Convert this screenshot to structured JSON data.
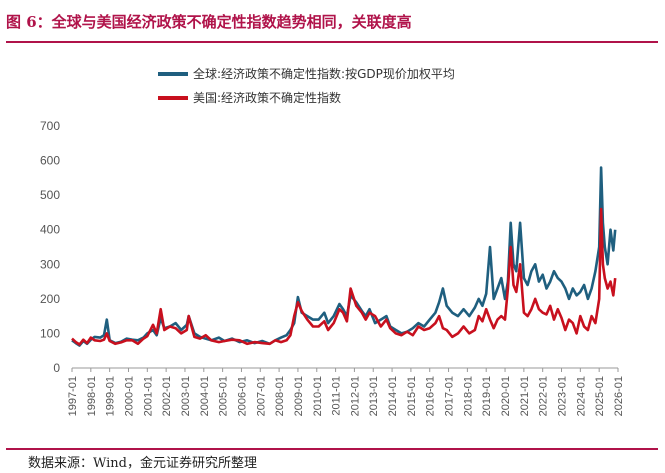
{
  "title": "图 6：全球与美国经济政策不确定性指数趋势相同，关联度高",
  "source": "数据来源：Wind，金元证券研究所整理",
  "colors": {
    "accent": "#b0134a",
    "global": "#1f5f7f",
    "us": "#c8101e",
    "axis": "#999999"
  },
  "chart_data": {
    "type": "line",
    "ylim": [
      0,
      700
    ],
    "yticks": [
      0,
      100,
      200,
      300,
      400,
      500,
      600,
      700
    ],
    "xticks": [
      "1997-01",
      "1998-01",
      "1999-01",
      "2000-01",
      "2001-01",
      "2002-01",
      "2003-01",
      "2004-01",
      "2005-01",
      "2006-01",
      "2007-01",
      "2008-01",
      "2009-01",
      "2010-01",
      "2011-01",
      "2012-01",
      "2013-01",
      "2014-01",
      "2015-01",
      "2016-01",
      "2017-01",
      "2018-01",
      "2019-01",
      "2020-01",
      "2021-01",
      "2022-01",
      "2023-01",
      "2024-01",
      "2025-01",
      "2026-01"
    ],
    "xlim": [
      1997.0,
      2026.0
    ],
    "series": [
      {
        "name": "全球:经济政策不确定性指数:按GDP现价加权平均",
        "color": "#1f5f7f",
        "x": [
          1997.0,
          1997.2,
          1997.4,
          1997.6,
          1997.8,
          1998.0,
          1998.2,
          1998.5,
          1998.7,
          1998.85,
          1999.0,
          1999.3,
          1999.6,
          1999.9,
          2000.2,
          2000.5,
          2000.8,
          2001.0,
          2001.3,
          2001.5,
          2001.71,
          2001.9,
          2002.2,
          2002.5,
          2002.8,
          2003.1,
          2003.2,
          2003.5,
          2003.8,
          2004.1,
          2004.4,
          2004.8,
          2005.1,
          2005.5,
          2005.9,
          2006.3,
          2006.7,
          2007.1,
          2007.5,
          2007.8,
          2008.1,
          2008.4,
          2008.6,
          2008.8,
          2009.0,
          2009.2,
          2009.5,
          2009.8,
          2010.1,
          2010.4,
          2010.6,
          2010.9,
          2011.2,
          2011.4,
          2011.6,
          2011.8,
          2012.1,
          2012.4,
          2012.6,
          2012.8,
          2013.1,
          2013.4,
          2013.7,
          2013.9,
          2014.2,
          2014.5,
          2014.8,
          2015.1,
          2015.4,
          2015.7,
          2016.0,
          2016.3,
          2016.5,
          2016.7,
          2016.9,
          2017.2,
          2017.5,
          2017.8,
          2018.1,
          2018.4,
          2018.6,
          2018.8,
          2019.0,
          2019.2,
          2019.4,
          2019.6,
          2019.8,
          2020.0,
          2020.15,
          2020.3,
          2020.45,
          2020.6,
          2020.8,
          2021.0,
          2021.2,
          2021.4,
          2021.6,
          2021.8,
          2022.0,
          2022.2,
          2022.4,
          2022.6,
          2022.8,
          2023.0,
          2023.2,
          2023.4,
          2023.6,
          2023.8,
          2024.0,
          2024.2,
          2024.4,
          2024.6,
          2024.8,
          2025.0,
          2025.1,
          2025.2,
          2025.3,
          2025.45,
          2025.6,
          2025.75,
          2025.85
        ],
        "values": [
          80,
          72,
          65,
          78,
          70,
          82,
          90,
          88,
          95,
          140,
          80,
          72,
          76,
          85,
          82,
          80,
          88,
          100,
          110,
          95,
          145,
          115,
          120,
          130,
          110,
          125,
          150,
          100,
          90,
          85,
          80,
          88,
          78,
          85,
          75,
          80,
          72,
          78,
          70,
          80,
          88,
          95,
          110,
          130,
          205,
          160,
          150,
          140,
          140,
          160,
          130,
          150,
          185,
          170,
          150,
          210,
          190,
          165,
          150,
          170,
          130,
          140,
          150,
          120,
          110,
          100,
          105,
          115,
          130,
          120,
          140,
          160,
          190,
          230,
          180,
          160,
          150,
          170,
          150,
          175,
          200,
          180,
          215,
          350,
          200,
          230,
          260,
          200,
          250,
          420,
          300,
          280,
          420,
          260,
          240,
          280,
          300,
          250,
          270,
          230,
          250,
          280,
          260,
          250,
          230,
          200,
          230,
          210,
          220,
          240,
          200,
          230,
          280,
          350,
          580,
          420,
          350,
          300,
          400,
          340,
          400
        ]
      },
      {
        "name": "美国:经济政策不确定性指数",
        "color": "#c8101e",
        "x": [
          1997.0,
          1997.2,
          1997.4,
          1997.6,
          1997.8,
          1998.0,
          1998.2,
          1998.5,
          1998.7,
          1998.85,
          1999.0,
          1999.3,
          1999.6,
          1999.9,
          2000.2,
          2000.5,
          2000.8,
          2001.0,
          2001.3,
          2001.5,
          2001.71,
          2001.9,
          2002.2,
          2002.5,
          2002.8,
          2003.1,
          2003.2,
          2003.5,
          2003.8,
          2004.1,
          2004.4,
          2004.8,
          2005.1,
          2005.5,
          2005.9,
          2006.3,
          2006.7,
          2007.1,
          2007.5,
          2007.8,
          2008.1,
          2008.4,
          2008.6,
          2008.8,
          2009.0,
          2009.2,
          2009.5,
          2009.8,
          2010.1,
          2010.4,
          2010.6,
          2010.9,
          2011.2,
          2011.4,
          2011.6,
          2011.8,
          2012.1,
          2012.4,
          2012.6,
          2012.8,
          2013.1,
          2013.4,
          2013.7,
          2013.9,
          2014.2,
          2014.5,
          2014.8,
          2015.1,
          2015.4,
          2015.7,
          2016.0,
          2016.3,
          2016.5,
          2016.7,
          2016.9,
          2017.2,
          2017.5,
          2017.8,
          2018.1,
          2018.4,
          2018.6,
          2018.8,
          2019.0,
          2019.2,
          2019.4,
          2019.6,
          2019.8,
          2020.0,
          2020.15,
          2020.3,
          2020.45,
          2020.6,
          2020.8,
          2021.0,
          2021.2,
          2021.4,
          2021.6,
          2021.8,
          2022.0,
          2022.2,
          2022.4,
          2022.6,
          2022.8,
          2023.0,
          2023.2,
          2023.4,
          2023.6,
          2023.8,
          2024.0,
          2024.2,
          2024.4,
          2024.6,
          2024.8,
          2025.0,
          2025.1,
          2025.2,
          2025.3,
          2025.45,
          2025.6,
          2025.75,
          2025.85
        ],
        "values": [
          85,
          75,
          68,
          82,
          72,
          88,
          80,
          78,
          82,
          100,
          78,
          70,
          74,
          80,
          80,
          70,
          85,
          92,
          125,
          100,
          170,
          110,
          120,
          115,
          100,
          110,
          150,
          90,
          85,
          95,
          80,
          75,
          78,
          82,
          80,
          70,
          75,
          72,
          70,
          80,
          75,
          80,
          95,
          150,
          190,
          165,
          140,
          120,
          120,
          135,
          110,
          130,
          170,
          160,
          135,
          230,
          180,
          160,
          140,
          160,
          150,
          120,
          140,
          115,
          100,
          95,
          105,
          95,
          120,
          110,
          115,
          130,
          150,
          115,
          110,
          90,
          100,
          120,
          100,
          110,
          150,
          135,
          170,
          140,
          115,
          140,
          150,
          140,
          230,
          350,
          240,
          220,
          300,
          160,
          150,
          170,
          200,
          170,
          160,
          155,
          180,
          140,
          170,
          145,
          110,
          140,
          130,
          100,
          150,
          120,
          110,
          150,
          130,
          200,
          460,
          300,
          260,
          230,
          250,
          210,
          260
        ]
      }
    ]
  }
}
